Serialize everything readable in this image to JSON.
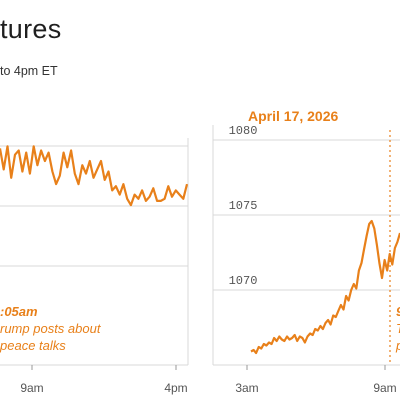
{
  "header": {
    "title": "tures",
    "subtitle": "to 4pm ET"
  },
  "colors": {
    "line": "#e8801a",
    "grid": "#d9d9d9",
    "axis_text": "#555555"
  },
  "chart_data": [
    {
      "type": "line",
      "title": "",
      "x_ticks": [
        "9am",
        "4pm"
      ],
      "annotation": {
        "time": ":05am",
        "lines": [
          "rump posts about",
          "peace talks"
        ]
      },
      "series": [
        {
          "x": [
            0,
            1,
            2,
            3,
            4,
            5,
            6,
            7,
            8,
            9,
            10,
            11,
            12,
            13,
            14,
            15,
            16,
            17,
            18,
            19,
            20,
            21,
            22,
            23,
            24,
            25,
            26,
            27,
            28,
            29,
            30,
            31,
            32,
            33,
            34,
            35,
            36,
            37,
            38,
            39,
            40,
            41,
            42,
            43,
            44,
            45,
            46,
            47,
            48,
            49,
            50
          ],
          "values": [
            96,
            86,
            97,
            82,
            93,
            95,
            85,
            94,
            84,
            97,
            88,
            95,
            90,
            94,
            85,
            79,
            83,
            94,
            87,
            95,
            84,
            79,
            88,
            84,
            90,
            82,
            86,
            90,
            81,
            85,
            76,
            78,
            74,
            79,
            72,
            69,
            74,
            72,
            76,
            71,
            73,
            77,
            71,
            71,
            72,
            78,
            73,
            76,
            74,
            72,
            79
          ]
        }
      ]
    },
    {
      "type": "line",
      "title": "April 17, 2026",
      "ylim": [
        1065,
        1081
      ],
      "y_ticks": [
        1070,
        1075,
        1080
      ],
      "x_ticks": [
        "3am",
        "9am"
      ],
      "annotation": {
        "time": "9",
        "lines": [
          "T",
          "p"
        ]
      },
      "series": [
        {
          "x": [
            0,
            1,
            2,
            3,
            4,
            5,
            6,
            7,
            8,
            9,
            10,
            11,
            12,
            13,
            14,
            15,
            16,
            17,
            18,
            19,
            20,
            21,
            22,
            23,
            24,
            25,
            26,
            27,
            28,
            29,
            30,
            31,
            32,
            33,
            34,
            35,
            36,
            37,
            38,
            39,
            40,
            41,
            42,
            43,
            44,
            45,
            46,
            47,
            48,
            49,
            50,
            51,
            52,
            53,
            54,
            55,
            56,
            57,
            58
          ],
          "values": [
            1065.9,
            1066.0,
            1065.8,
            1066.2,
            1066.1,
            1066.4,
            1066.3,
            1066.5,
            1066.4,
            1066.8,
            1066.6,
            1066.9,
            1066.7,
            1066.6,
            1066.9,
            1066.7,
            1066.8,
            1067.0,
            1066.6,
            1066.9,
            1066.8,
            1066.5,
            1066.9,
            1067.1,
            1067.0,
            1067.4,
            1067.3,
            1067.6,
            1067.4,
            1067.8,
            1068.0,
            1067.7,
            1068.3,
            1068.2,
            1068.6,
            1069.0,
            1068.7,
            1069.6,
            1069.3,
            1070.0,
            1070.4,
            1070.1,
            1071.3,
            1071.8,
            1072.7,
            1073.6,
            1074.4,
            1074.6,
            1074.1,
            1073.0,
            1071.8,
            1070.8,
            1072.0,
            1071.3,
            1072.4,
            1071.7,
            1072.8,
            1073.2,
            1073.8
          ]
        }
      ]
    }
  ]
}
